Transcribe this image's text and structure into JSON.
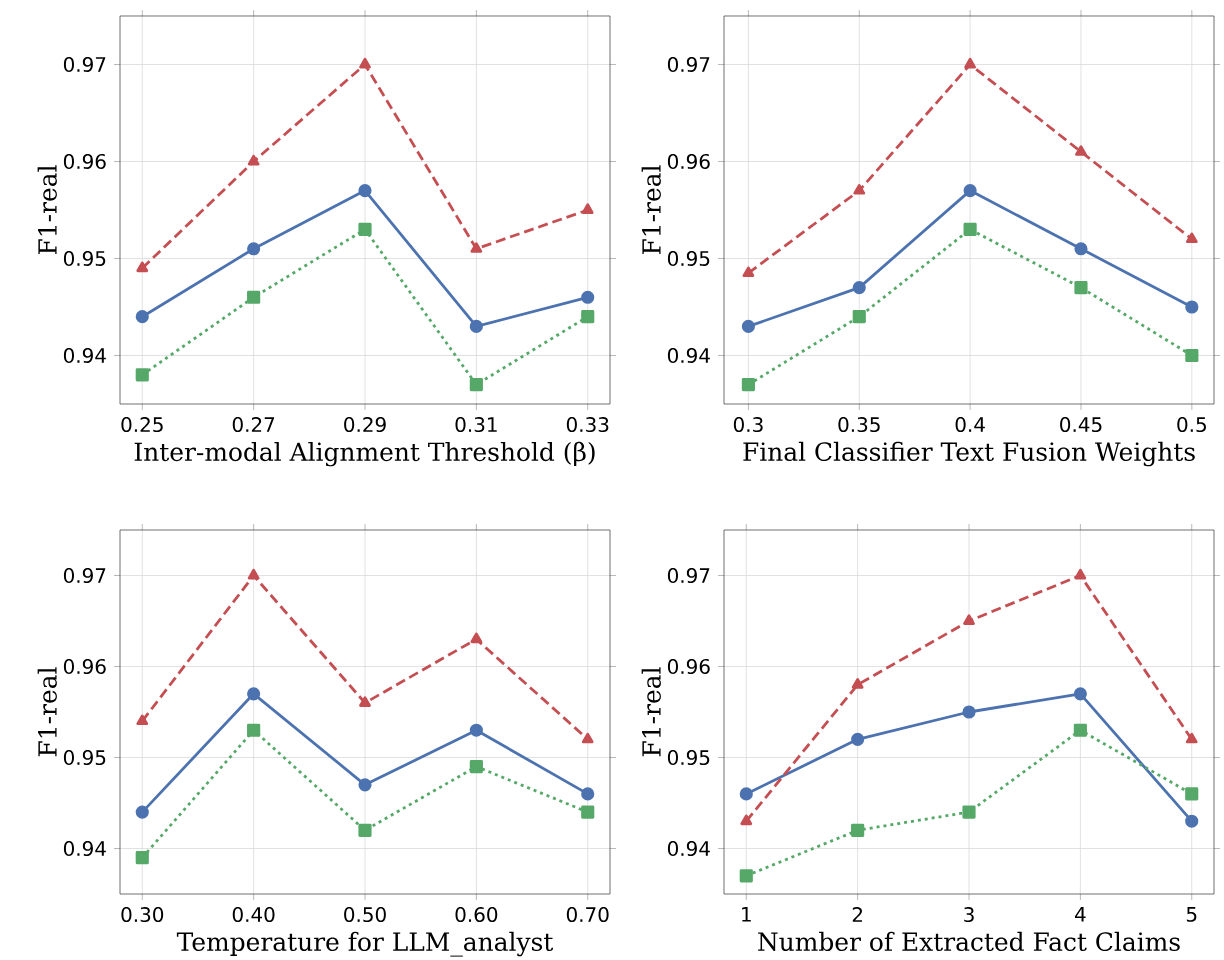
{
  "chart_data": [
    {
      "type": "line",
      "xlabel": "Inter-modal Alignment Threshold (β)",
      "ylabel": "F1-real",
      "x": [
        0.25,
        0.27,
        0.29,
        0.31,
        0.33
      ],
      "xlim": [
        0.246,
        0.334
      ],
      "xticks": [
        0.25,
        0.27,
        0.29,
        0.31,
        0.33
      ],
      "ylim": [
        0.935,
        0.975
      ],
      "yticks": [
        0.94,
        0.95,
        0.96,
        0.97
      ],
      "grid": true,
      "series": [
        {
          "color": "#4c72b0",
          "marker": "circle",
          "line_style": "solid",
          "values": [
            0.944,
            0.951,
            0.957,
            0.943,
            0.946
          ]
        },
        {
          "color": "#c44e52",
          "marker": "triangle",
          "line_style": "dashed",
          "values": [
            0.949,
            0.96,
            0.97,
            0.951,
            0.955
          ]
        },
        {
          "color": "#55a868",
          "marker": "square",
          "line_style": "dotted",
          "values": [
            0.938,
            0.946,
            0.953,
            0.937,
            0.944
          ]
        }
      ]
    },
    {
      "type": "line",
      "xlabel": "Final Classifier Text Fusion Weights",
      "ylabel": "F1-real",
      "x": [
        0.3,
        0.35,
        0.4,
        0.45,
        0.5
      ],
      "xlim": [
        0.289,
        0.51
      ],
      "xticks": [
        0.3,
        0.35,
        0.4,
        0.45,
        0.5
      ],
      "ylim": [
        0.935,
        0.975
      ],
      "yticks": [
        0.94,
        0.95,
        0.96,
        0.97
      ],
      "grid": true,
      "series": [
        {
          "color": "#4c72b0",
          "marker": "circle",
          "line_style": "solid",
          "values": [
            0.943,
            0.947,
            0.957,
            0.951,
            0.945
          ]
        },
        {
          "color": "#c44e52",
          "marker": "triangle",
          "line_style": "dashed",
          "values": [
            0.9485,
            0.957,
            0.97,
            0.961,
            0.952
          ]
        },
        {
          "color": "#55a868",
          "marker": "square",
          "line_style": "dotted",
          "values": [
            0.937,
            0.944,
            0.953,
            0.947,
            0.94
          ]
        }
      ]
    },
    {
      "type": "line",
      "xlabel": "Temperature for LLM_analyst",
      "ylabel": "F1-real",
      "x": [
        0.3,
        0.4,
        0.5,
        0.6,
        0.7
      ],
      "xlim": [
        0.28,
        0.72
      ],
      "xticks": [
        {
          "value": 0.3,
          "label": "0.30"
        },
        {
          "value": 0.4,
          "label": "0.40"
        },
        {
          "value": 0.5,
          "label": "0.50"
        },
        {
          "value": 0.6,
          "label": "0.60"
        },
        {
          "value": 0.7,
          "label": "0.70"
        }
      ],
      "ylim": [
        0.935,
        0.975
      ],
      "yticks": [
        0.94,
        0.95,
        0.96,
        0.97
      ],
      "grid": true,
      "series": [
        {
          "color": "#4c72b0",
          "marker": "circle",
          "line_style": "solid",
          "values": [
            0.944,
            0.957,
            0.947,
            0.953,
            0.946
          ]
        },
        {
          "color": "#c44e52",
          "marker": "triangle",
          "line_style": "dashed",
          "values": [
            0.954,
            0.97,
            0.956,
            0.963,
            0.952
          ]
        },
        {
          "color": "#55a868",
          "marker": "square",
          "line_style": "dotted",
          "values": [
            0.939,
            0.953,
            0.942,
            0.949,
            0.944
          ]
        }
      ]
    },
    {
      "type": "line",
      "xlabel": "Number of Extracted Fact Claims",
      "ylabel": "F1-real",
      "x": [
        1,
        2,
        3,
        4,
        5
      ],
      "xlim": [
        0.8,
        5.2
      ],
      "xticks": [
        1,
        2,
        3,
        4,
        5
      ],
      "ylim": [
        0.935,
        0.975
      ],
      "yticks": [
        0.94,
        0.95,
        0.96,
        0.97
      ],
      "grid": true,
      "series": [
        {
          "color": "#4c72b0",
          "marker": "circle",
          "line_style": "solid",
          "values": [
            0.946,
            0.952,
            0.955,
            0.957,
            0.943
          ]
        },
        {
          "color": "#c44e52",
          "marker": "triangle",
          "line_style": "dashed",
          "values": [
            0.943,
            0.958,
            0.965,
            0.97,
            0.952
          ]
        },
        {
          "color": "#55a868",
          "marker": "square",
          "line_style": "dotted",
          "values": [
            0.937,
            0.942,
            0.944,
            0.953,
            0.946
          ]
        }
      ]
    }
  ]
}
